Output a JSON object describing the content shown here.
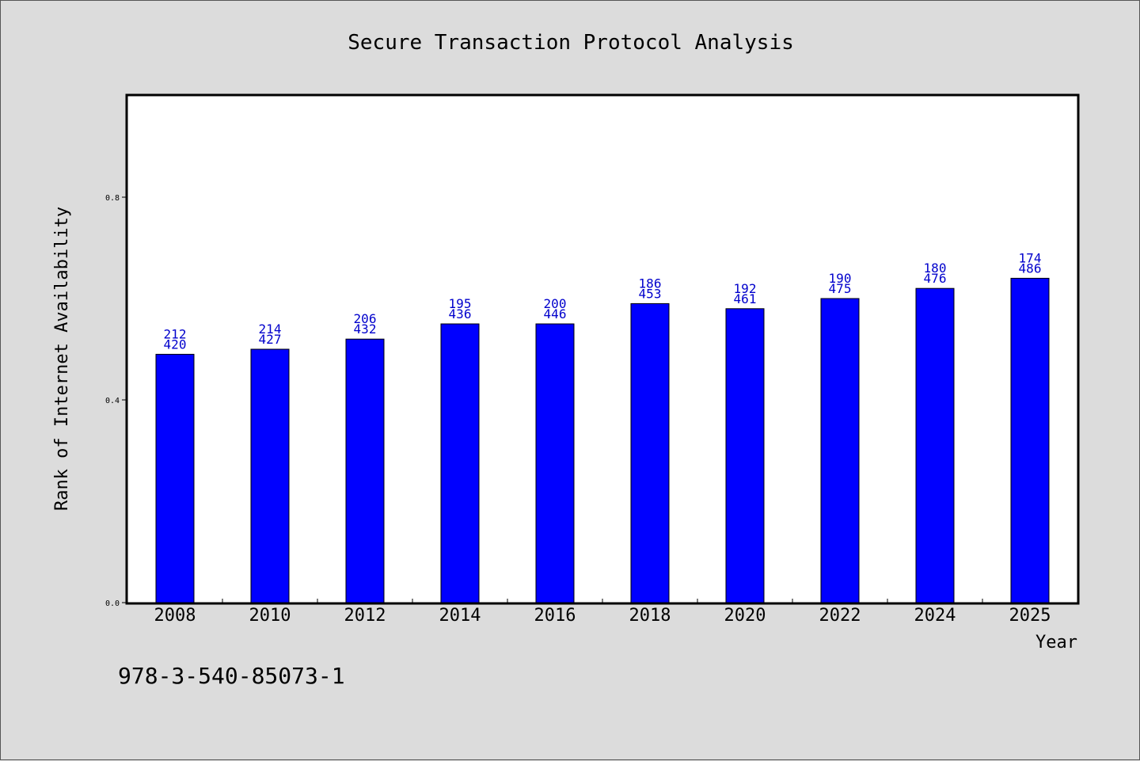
{
  "chart_data": {
    "type": "bar",
    "title": "Secure Transaction Protocol Analysis",
    "xlabel": "Year",
    "ylabel": "Rank of Internet Availability",
    "categories": [
      "2008",
      "2010",
      "2012",
      "2014",
      "2016",
      "2018",
      "2020",
      "2022",
      "2024",
      "2025"
    ],
    "values": [
      0.49,
      0.5,
      0.52,
      0.55,
      0.55,
      0.59,
      0.58,
      0.6,
      0.62,
      0.64
    ],
    "labels_top": [
      "212",
      "214",
      "206",
      "195",
      "200",
      "186",
      "192",
      "190",
      "180",
      "174"
    ],
    "labels_bottom": [
      "420",
      "427",
      "432",
      "436",
      "446",
      "453",
      "461",
      "475",
      "476",
      "486"
    ],
    "yticks": [
      "0.0",
      "0.4",
      "0.8"
    ],
    "ytick_values": [
      0.0,
      0.4,
      0.8
    ],
    "ylim": [
      0,
      1.0
    ],
    "grid": false,
    "bar_color": "#0000ff",
    "label_color": "#0000cc"
  },
  "footnote": "978-3-540-85073-1"
}
